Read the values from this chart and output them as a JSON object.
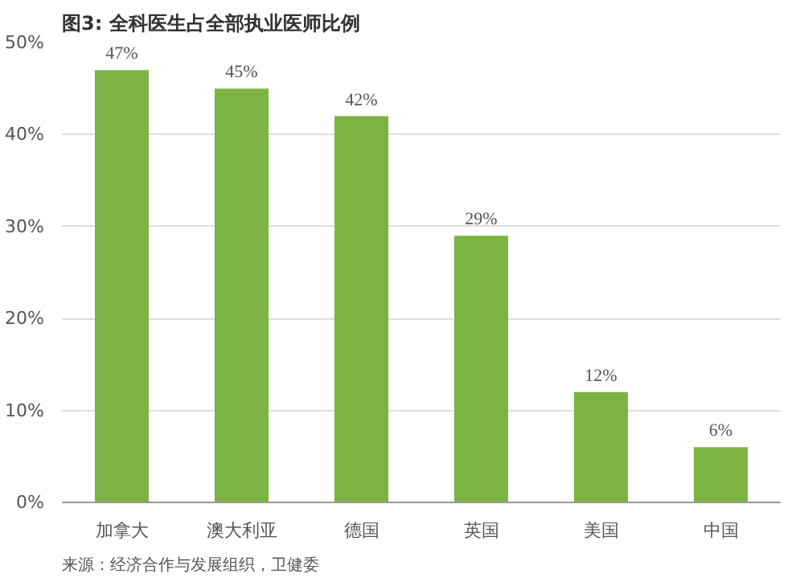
{
  "chart_data": {
    "type": "bar",
    "title": "图3: 全科医生占全部执业医师比例",
    "categories": [
      "加拿大",
      "澳大利亚",
      "德国",
      "英国",
      "美国",
      "中国"
    ],
    "values": [
      47,
      45,
      42,
      29,
      12,
      6
    ],
    "value_labels": [
      "47%",
      "45%",
      "42%",
      "29%",
      "12%",
      "6%"
    ],
    "color": "#7cb342",
    "ylim": [
      0,
      50
    ],
    "yticks": [
      {
        "value": 0,
        "label": "0%"
      },
      {
        "value": 10,
        "label": "10%"
      },
      {
        "value": 20,
        "label": "20%"
      },
      {
        "value": 30,
        "label": "30%"
      },
      {
        "value": 40,
        "label": "40%"
      },
      {
        "value": 50,
        "label": "50%"
      }
    ],
    "grid": "y",
    "annotations": [
      "来源：经济合作与发展组织，卫健委"
    ]
  }
}
